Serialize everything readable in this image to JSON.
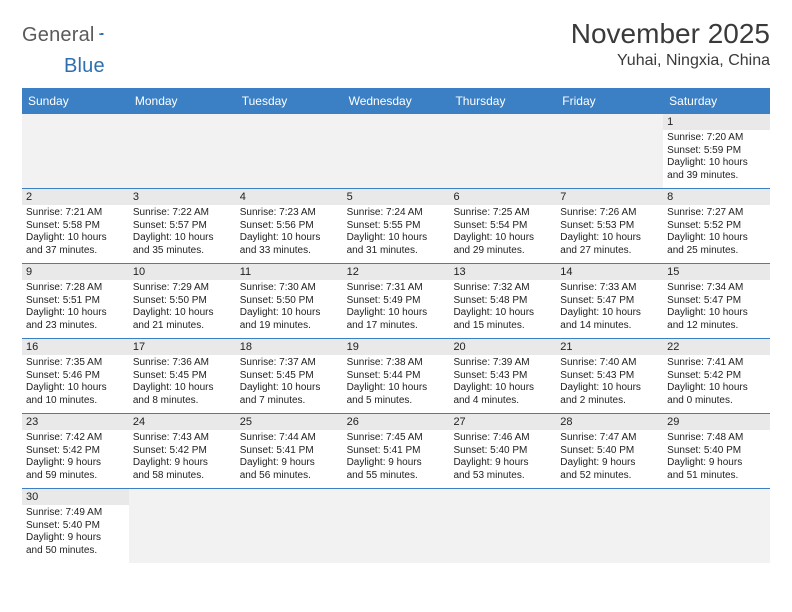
{
  "logo": {
    "word1": "General",
    "word2": "Blue",
    "shape_color": "#2f6faf",
    "text1_color": "#5a5a5a"
  },
  "title": "November 2025",
  "location": "Yuhai, Ningxia, China",
  "colors": {
    "header_bg": "#3b7fc4",
    "header_text": "#ffffff",
    "daynum_bg": "#e9e9e9",
    "row_border": "#3b7fc4",
    "blank_bg": "#f2f2f2",
    "body_text": "#222222"
  },
  "day_labels": [
    "Sunday",
    "Monday",
    "Tuesday",
    "Wednesday",
    "Thursday",
    "Friday",
    "Saturday"
  ],
  "weeks": [
    {
      "nums": [
        "",
        "",
        "",
        "",
        "",
        "",
        "1"
      ],
      "cells": [
        null,
        null,
        null,
        null,
        null,
        null,
        {
          "sr": "Sunrise: 7:20 AM",
          "ss": "Sunset: 5:59 PM",
          "d1": "Daylight: 10 hours",
          "d2": "and 39 minutes."
        }
      ]
    },
    {
      "nums": [
        "2",
        "3",
        "4",
        "5",
        "6",
        "7",
        "8"
      ],
      "cells": [
        {
          "sr": "Sunrise: 7:21 AM",
          "ss": "Sunset: 5:58 PM",
          "d1": "Daylight: 10 hours",
          "d2": "and 37 minutes."
        },
        {
          "sr": "Sunrise: 7:22 AM",
          "ss": "Sunset: 5:57 PM",
          "d1": "Daylight: 10 hours",
          "d2": "and 35 minutes."
        },
        {
          "sr": "Sunrise: 7:23 AM",
          "ss": "Sunset: 5:56 PM",
          "d1": "Daylight: 10 hours",
          "d2": "and 33 minutes."
        },
        {
          "sr": "Sunrise: 7:24 AM",
          "ss": "Sunset: 5:55 PM",
          "d1": "Daylight: 10 hours",
          "d2": "and 31 minutes."
        },
        {
          "sr": "Sunrise: 7:25 AM",
          "ss": "Sunset: 5:54 PM",
          "d1": "Daylight: 10 hours",
          "d2": "and 29 minutes."
        },
        {
          "sr": "Sunrise: 7:26 AM",
          "ss": "Sunset: 5:53 PM",
          "d1": "Daylight: 10 hours",
          "d2": "and 27 minutes."
        },
        {
          "sr": "Sunrise: 7:27 AM",
          "ss": "Sunset: 5:52 PM",
          "d1": "Daylight: 10 hours",
          "d2": "and 25 minutes."
        }
      ]
    },
    {
      "nums": [
        "9",
        "10",
        "11",
        "12",
        "13",
        "14",
        "15"
      ],
      "cells": [
        {
          "sr": "Sunrise: 7:28 AM",
          "ss": "Sunset: 5:51 PM",
          "d1": "Daylight: 10 hours",
          "d2": "and 23 minutes."
        },
        {
          "sr": "Sunrise: 7:29 AM",
          "ss": "Sunset: 5:50 PM",
          "d1": "Daylight: 10 hours",
          "d2": "and 21 minutes."
        },
        {
          "sr": "Sunrise: 7:30 AM",
          "ss": "Sunset: 5:50 PM",
          "d1": "Daylight: 10 hours",
          "d2": "and 19 minutes."
        },
        {
          "sr": "Sunrise: 7:31 AM",
          "ss": "Sunset: 5:49 PM",
          "d1": "Daylight: 10 hours",
          "d2": "and 17 minutes."
        },
        {
          "sr": "Sunrise: 7:32 AM",
          "ss": "Sunset: 5:48 PM",
          "d1": "Daylight: 10 hours",
          "d2": "and 15 minutes."
        },
        {
          "sr": "Sunrise: 7:33 AM",
          "ss": "Sunset: 5:47 PM",
          "d1": "Daylight: 10 hours",
          "d2": "and 14 minutes."
        },
        {
          "sr": "Sunrise: 7:34 AM",
          "ss": "Sunset: 5:47 PM",
          "d1": "Daylight: 10 hours",
          "d2": "and 12 minutes."
        }
      ]
    },
    {
      "nums": [
        "16",
        "17",
        "18",
        "19",
        "20",
        "21",
        "22"
      ],
      "cells": [
        {
          "sr": "Sunrise: 7:35 AM",
          "ss": "Sunset: 5:46 PM",
          "d1": "Daylight: 10 hours",
          "d2": "and 10 minutes."
        },
        {
          "sr": "Sunrise: 7:36 AM",
          "ss": "Sunset: 5:45 PM",
          "d1": "Daylight: 10 hours",
          "d2": "and 8 minutes."
        },
        {
          "sr": "Sunrise: 7:37 AM",
          "ss": "Sunset: 5:45 PM",
          "d1": "Daylight: 10 hours",
          "d2": "and 7 minutes."
        },
        {
          "sr": "Sunrise: 7:38 AM",
          "ss": "Sunset: 5:44 PM",
          "d1": "Daylight: 10 hours",
          "d2": "and 5 minutes."
        },
        {
          "sr": "Sunrise: 7:39 AM",
          "ss": "Sunset: 5:43 PM",
          "d1": "Daylight: 10 hours",
          "d2": "and 4 minutes."
        },
        {
          "sr": "Sunrise: 7:40 AM",
          "ss": "Sunset: 5:43 PM",
          "d1": "Daylight: 10 hours",
          "d2": "and 2 minutes."
        },
        {
          "sr": "Sunrise: 7:41 AM",
          "ss": "Sunset: 5:42 PM",
          "d1": "Daylight: 10 hours",
          "d2": "and 0 minutes."
        }
      ]
    },
    {
      "nums": [
        "23",
        "24",
        "25",
        "26",
        "27",
        "28",
        "29"
      ],
      "cells": [
        {
          "sr": "Sunrise: 7:42 AM",
          "ss": "Sunset: 5:42 PM",
          "d1": "Daylight: 9 hours",
          "d2": "and 59 minutes."
        },
        {
          "sr": "Sunrise: 7:43 AM",
          "ss": "Sunset: 5:42 PM",
          "d1": "Daylight: 9 hours",
          "d2": "and 58 minutes."
        },
        {
          "sr": "Sunrise: 7:44 AM",
          "ss": "Sunset: 5:41 PM",
          "d1": "Daylight: 9 hours",
          "d2": "and 56 minutes."
        },
        {
          "sr": "Sunrise: 7:45 AM",
          "ss": "Sunset: 5:41 PM",
          "d1": "Daylight: 9 hours",
          "d2": "and 55 minutes."
        },
        {
          "sr": "Sunrise: 7:46 AM",
          "ss": "Sunset: 5:40 PM",
          "d1": "Daylight: 9 hours",
          "d2": "and 53 minutes."
        },
        {
          "sr": "Sunrise: 7:47 AM",
          "ss": "Sunset: 5:40 PM",
          "d1": "Daylight: 9 hours",
          "d2": "and 52 minutes."
        },
        {
          "sr": "Sunrise: 7:48 AM",
          "ss": "Sunset: 5:40 PM",
          "d1": "Daylight: 9 hours",
          "d2": "and 51 minutes."
        }
      ]
    },
    {
      "nums": [
        "30",
        "",
        "",
        "",
        "",
        "",
        ""
      ],
      "cells": [
        {
          "sr": "Sunrise: 7:49 AM",
          "ss": "Sunset: 5:40 PM",
          "d1": "Daylight: 9 hours",
          "d2": "and 50 minutes."
        },
        null,
        null,
        null,
        null,
        null,
        null
      ],
      "no_border": true
    }
  ]
}
